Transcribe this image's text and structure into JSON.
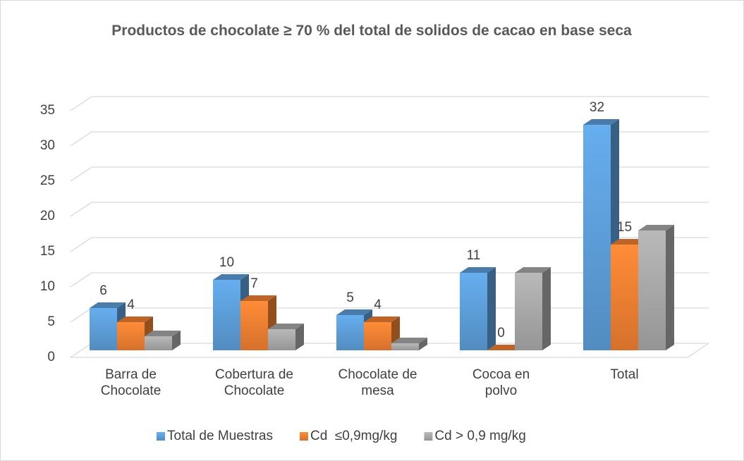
{
  "chart_data": {
    "type": "bar3d",
    "title": "Productos de chocolate ≥ 70 % del total de solidos de cacao en base seca",
    "categories": [
      "Barra de\nChocolate",
      "Cobertura de\nChocolate",
      "Chocolate de\nmesa",
      "Cocoa en\npolvo",
      "Total"
    ],
    "series": [
      {
        "name": "Total de Muestras",
        "color": "#5b9bd5",
        "values": [
          6,
          10,
          5,
          11,
          32
        ],
        "labels": true
      },
      {
        "name": "Cd  ≤0,9mg/kg",
        "color": "#ed7d31",
        "values": [
          4,
          7,
          4,
          0,
          15
        ],
        "labels": true
      },
      {
        "name": "Cd > 0,9 mg/kg",
        "color": "#a5a5a5",
        "values": [
          2,
          3,
          1,
          11,
          17
        ],
        "labels": false
      }
    ],
    "ylim": [
      0,
      35
    ],
    "yticks": [
      0,
      5,
      10,
      15,
      20,
      25,
      30,
      35
    ],
    "grid": true,
    "legend": "bottom"
  }
}
